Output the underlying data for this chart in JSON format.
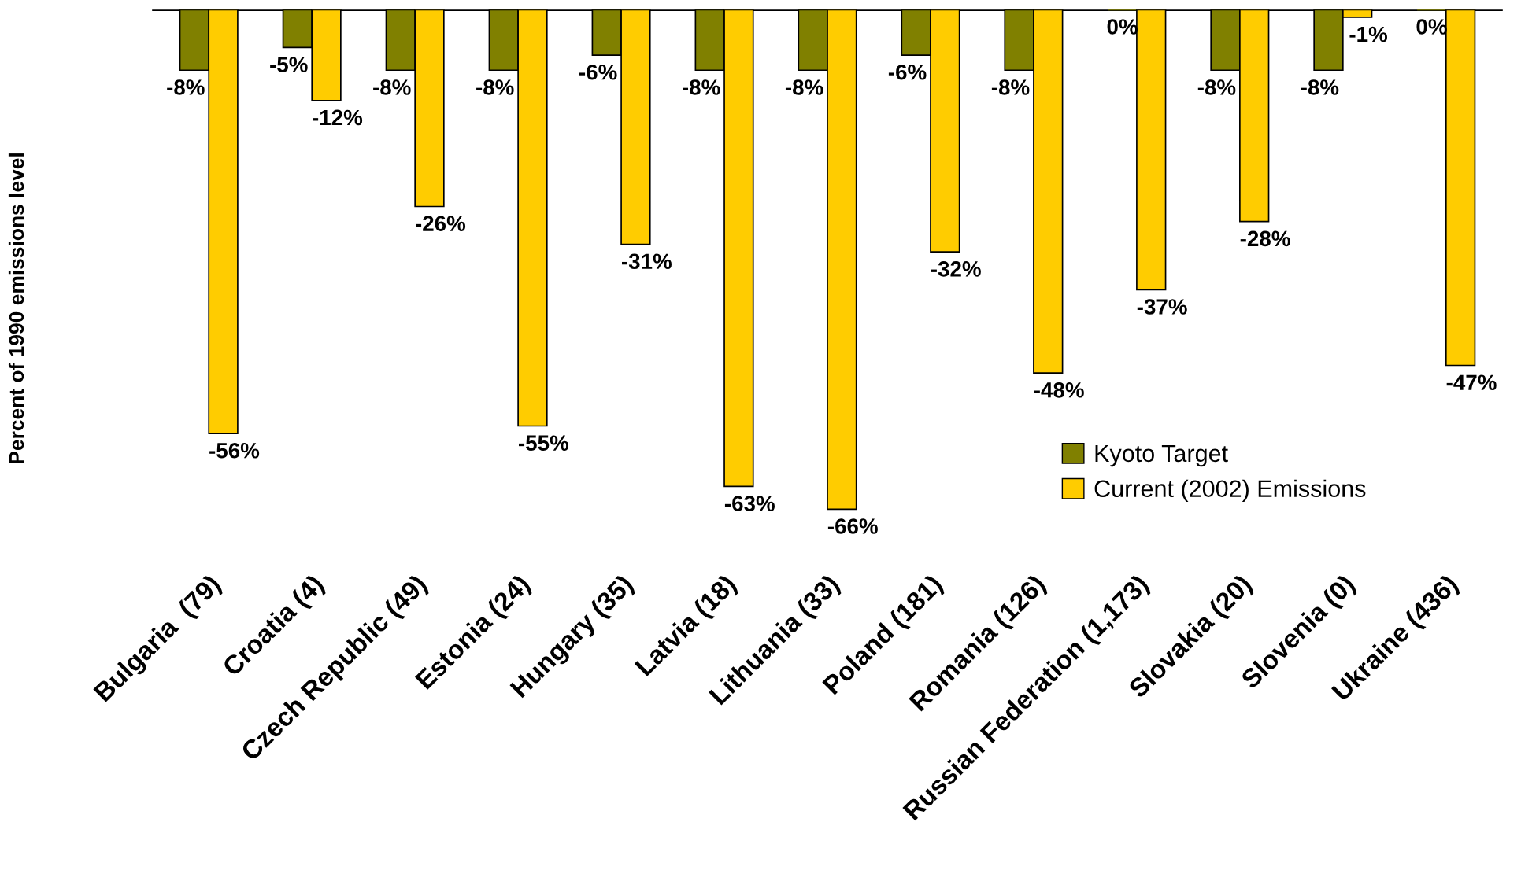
{
  "chart_data": {
    "type": "bar",
    "ylabel": "Percent of 1990 emissions level",
    "categories": [
      "Bulgaria  (79)",
      "Croatia (4)",
      "Czech Republic (49)",
      "Estonia (24)",
      "Hungary (35)",
      "Latvia (18)",
      "Lithuania (33)",
      "Poland (181)",
      "Romania (126)",
      "Russian Federation (1,173)",
      "Slovakia (20)",
      "Slovenia (0)",
      "Ukraine (436)"
    ],
    "series": [
      {
        "name": "Kyoto Target",
        "color": "#808000",
        "values": [
          -8,
          -5,
          -8,
          -8,
          -6,
          -8,
          -8,
          -6,
          -8,
          0,
          -8,
          -8,
          0
        ],
        "value_labels": [
          "-8%",
          "-5%",
          "-8%",
          "-8%",
          "-6%",
          "-8%",
          "-8%",
          "-6%",
          "-8%",
          "0%",
          "-8%",
          "-8%",
          "0%"
        ]
      },
      {
        "name": "Current (2002) Emissions",
        "color": "#ffcc00",
        "values": [
          -56,
          -12,
          -26,
          -55,
          -31,
          -63,
          -66,
          -32,
          -48,
          -37,
          -28,
          -1,
          -47
        ],
        "value_labels": [
          "-56%",
          "-12%",
          "-26%",
          "-55%",
          "-31%",
          "-63%",
          "-66%",
          "-32%",
          "-48%",
          "-37%",
          "-28%",
          "-1%",
          "-47%"
        ]
      }
    ],
    "tick_labels": "x",
    "grid": false,
    "legend": "bottom right"
  }
}
